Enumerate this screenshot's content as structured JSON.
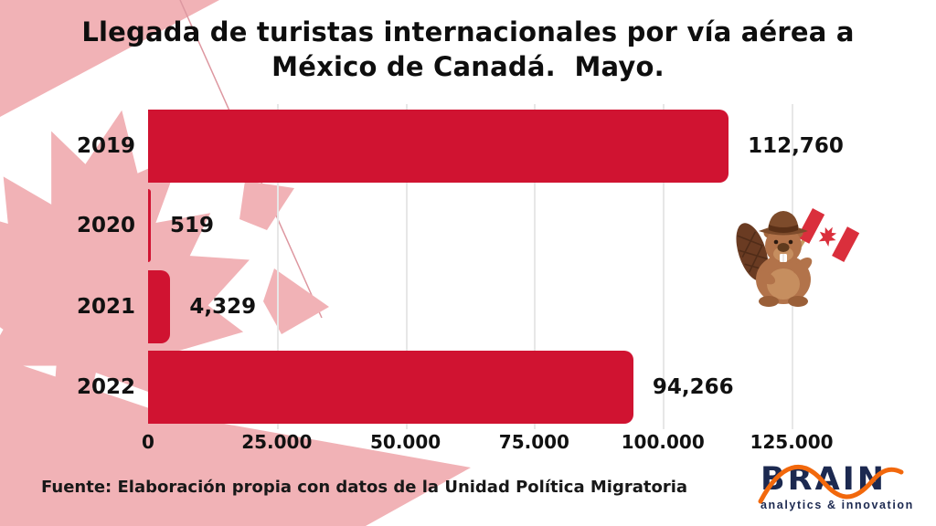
{
  "title": {
    "line1": "Llegada de turistas internacionales por vía aérea a",
    "line2": "México de Canadá.  Mayo."
  },
  "chart_data": {
    "type": "bar",
    "orientation": "horizontal",
    "title": "Llegada de turistas internacionales por vía aérea a México de Canadá. Mayo.",
    "categories": [
      "2019",
      "2020",
      "2021",
      "2022"
    ],
    "values": [
      112760,
      519,
      4329,
      94266
    ],
    "value_labels": [
      "112,760",
      "519",
      "4,329",
      "94,266"
    ],
    "x_ticks": [
      "0",
      "25.000",
      "50.000",
      "75.000",
      "100.000",
      "125.000"
    ],
    "x_tick_values": [
      0,
      25000,
      50000,
      75000,
      100000,
      125000
    ],
    "xlim": [
      0,
      125000
    ],
    "grid": true,
    "legend": false,
    "bar_color": "#d01331"
  },
  "source": {
    "text": "Fuente: Elaboración propia con datos de la Unidad Política Migratoria"
  },
  "logo": {
    "text": "BRAIN",
    "tagline": "analytics & innovation",
    "navy": "#1c2950",
    "orange": "#f2680c"
  },
  "decorations": {
    "flag_pink": "#f1b2b6",
    "bar_red": "#d01331",
    "mascot": "beaver-with-canadian-flag-icon"
  }
}
